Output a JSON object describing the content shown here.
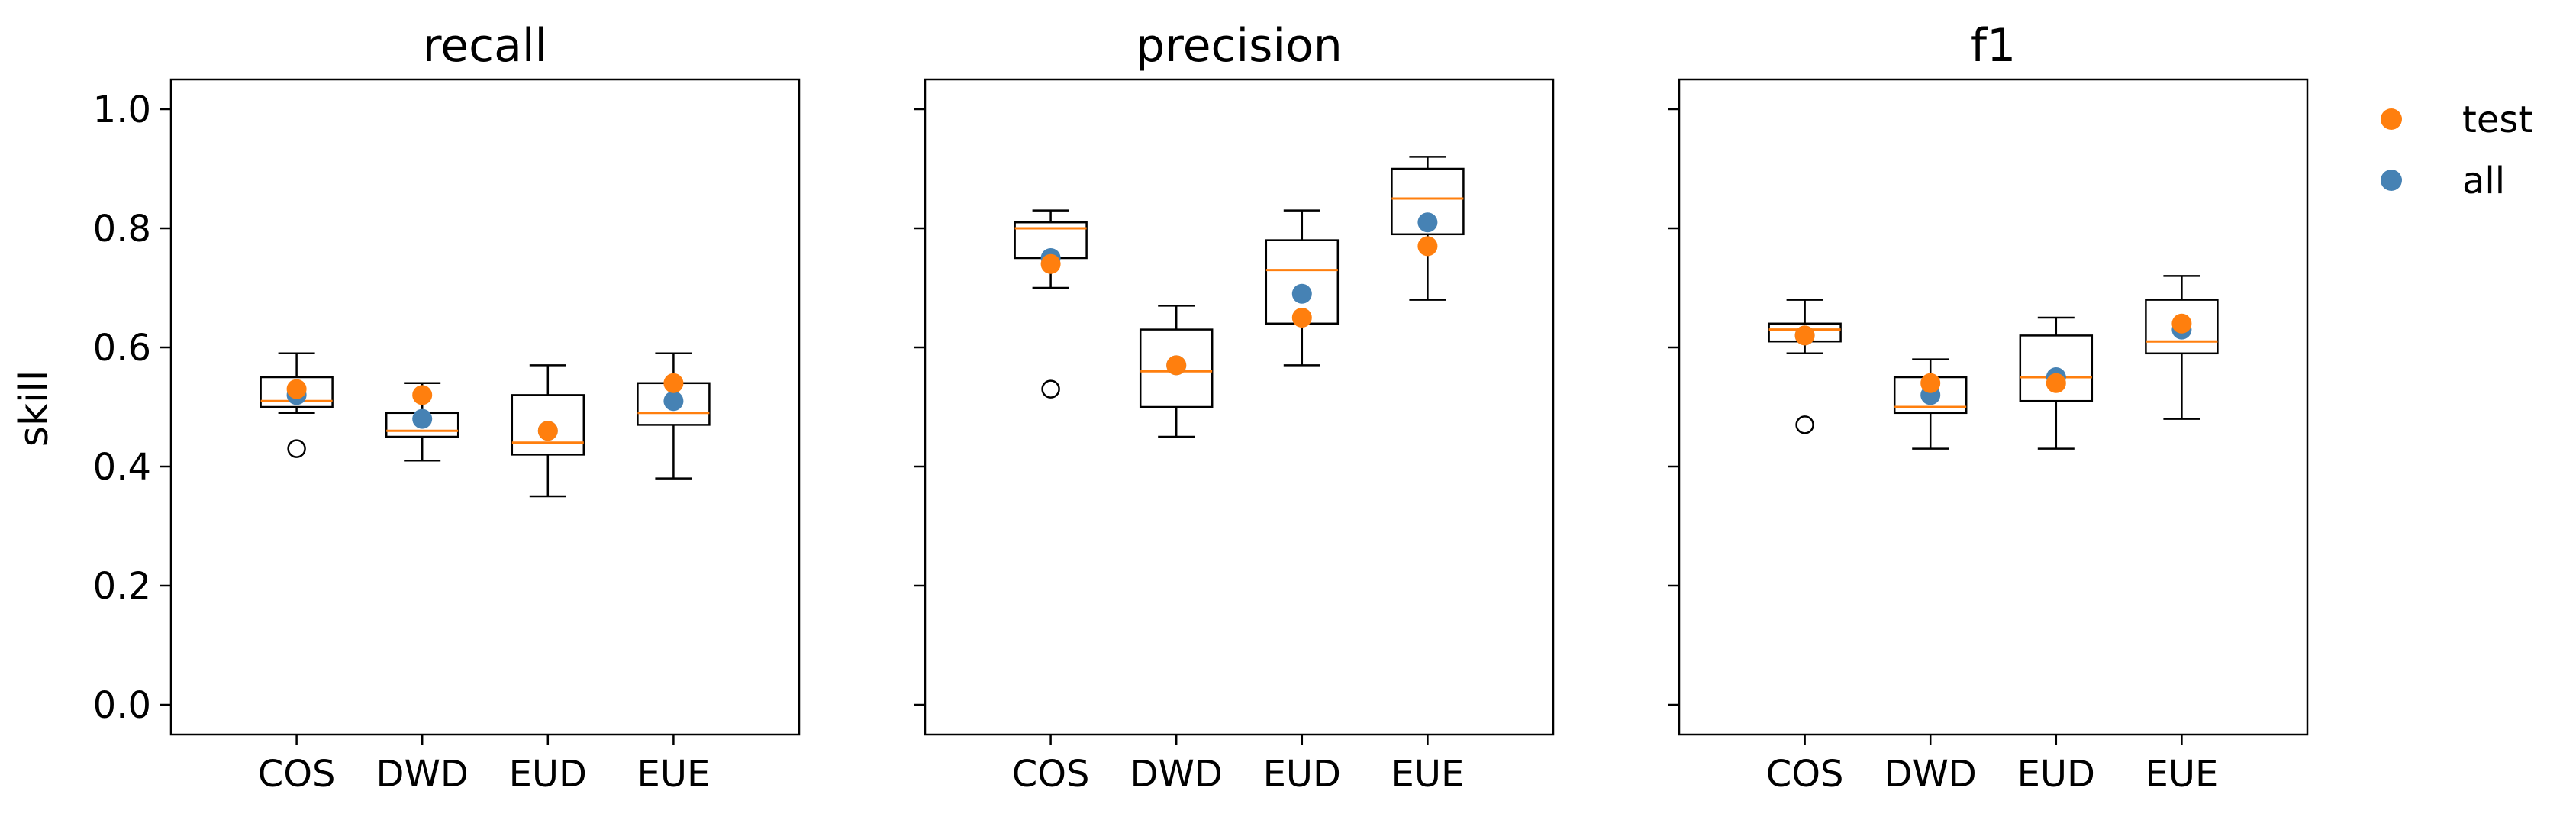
{
  "figure": {
    "ylabel": "skill",
    "legend": {
      "placement": "right-outside-top",
      "entries": [
        {
          "name": "test",
          "color": "#ff7f0e"
        },
        {
          "name": "all",
          "color": "#4682b4"
        }
      ]
    }
  },
  "chart_data": [
    {
      "type": "box",
      "title": "recall",
      "categories": [
        "COS",
        "DWD",
        "EUD",
        "EUE"
      ],
      "ylim": [
        -0.05,
        1.05
      ],
      "yticks": [
        "0.0",
        "0.2",
        "0.4",
        "0.6",
        "0.8",
        "1.0"
      ],
      "boxes": [
        {
          "whisker_low": 0.49,
          "q1": 0.5,
          "median": 0.51,
          "q3": 0.55,
          "whisker_high": 0.59,
          "outliers": [
            0.43
          ]
        },
        {
          "whisker_low": 0.41,
          "q1": 0.45,
          "median": 0.46,
          "q3": 0.49,
          "whisker_high": 0.54,
          "outliers": []
        },
        {
          "whisker_low": 0.35,
          "q1": 0.42,
          "median": 0.44,
          "q3": 0.52,
          "whisker_high": 0.57,
          "outliers": []
        },
        {
          "whisker_low": 0.38,
          "q1": 0.47,
          "median": 0.49,
          "q3": 0.54,
          "whisker_high": 0.59,
          "outliers": []
        }
      ],
      "points": {
        "all": [
          0.52,
          0.48,
          0.46,
          0.51
        ],
        "test": [
          0.53,
          0.52,
          0.46,
          0.54
        ]
      }
    },
    {
      "type": "box",
      "title": "precision",
      "categories": [
        "COS",
        "DWD",
        "EUD",
        "EUE"
      ],
      "ylim": [
        -0.05,
        1.05
      ],
      "yticks": [
        "0.0",
        "0.2",
        "0.4",
        "0.6",
        "0.8",
        "1.0"
      ],
      "boxes": [
        {
          "whisker_low": 0.7,
          "q1": 0.75,
          "median": 0.8,
          "q3": 0.81,
          "whisker_high": 0.83,
          "outliers": [
            0.53
          ]
        },
        {
          "whisker_low": 0.45,
          "q1": 0.5,
          "median": 0.56,
          "q3": 0.63,
          "whisker_high": 0.67,
          "outliers": []
        },
        {
          "whisker_low": 0.57,
          "q1": 0.64,
          "median": 0.73,
          "q3": 0.78,
          "whisker_high": 0.83,
          "outliers": []
        },
        {
          "whisker_low": 0.68,
          "q1": 0.79,
          "median": 0.85,
          "q3": 0.9,
          "whisker_high": 0.92,
          "outliers": []
        }
      ],
      "points": {
        "all": [
          0.75,
          0.57,
          0.69,
          0.81
        ],
        "test": [
          0.74,
          0.57,
          0.65,
          0.77
        ]
      }
    },
    {
      "type": "box",
      "title": "f1",
      "categories": [
        "COS",
        "DWD",
        "EUD",
        "EUE"
      ],
      "ylim": [
        -0.05,
        1.05
      ],
      "yticks": [
        "0.0",
        "0.2",
        "0.4",
        "0.6",
        "0.8",
        "1.0"
      ],
      "boxes": [
        {
          "whisker_low": 0.59,
          "q1": 0.61,
          "median": 0.63,
          "q3": 0.64,
          "whisker_high": 0.68,
          "outliers": [
            0.47
          ]
        },
        {
          "whisker_low": 0.43,
          "q1": 0.49,
          "median": 0.5,
          "q3": 0.55,
          "whisker_high": 0.58,
          "outliers": []
        },
        {
          "whisker_low": 0.43,
          "q1": 0.51,
          "median": 0.55,
          "q3": 0.62,
          "whisker_high": 0.65,
          "outliers": []
        },
        {
          "whisker_low": 0.48,
          "q1": 0.59,
          "median": 0.61,
          "q3": 0.68,
          "whisker_high": 0.72,
          "outliers": []
        }
      ],
      "points": {
        "all": [
          0.62,
          0.52,
          0.55,
          0.63
        ],
        "test": [
          0.62,
          0.54,
          0.54,
          0.64
        ]
      }
    }
  ]
}
